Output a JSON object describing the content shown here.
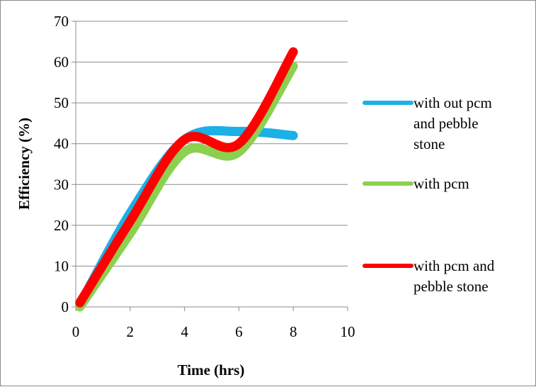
{
  "chart_data": {
    "type": "line",
    "xlabel": "Time (hrs)",
    "ylabel": "Efficiency (%)",
    "xlim": [
      0,
      10
    ],
    "ylim": [
      0,
      70
    ],
    "x_ticks": [
      0,
      2,
      4,
      6,
      8,
      10
    ],
    "y_ticks": [
      0,
      10,
      20,
      30,
      40,
      50,
      60,
      70
    ],
    "grid": "horizontal",
    "legend_position": "right",
    "series": [
      {
        "name": [
          "with out pcm",
          "and pebble",
          "stone"
        ],
        "color": "#1BB0E6",
        "x": [
          0,
          2,
          4,
          6,
          8
        ],
        "y": [
          0.5,
          23,
          41,
          43,
          42
        ]
      },
      {
        "name": [
          "with pcm"
        ],
        "color": "#8CD04F",
        "x": [
          0,
          2,
          4,
          6,
          8
        ],
        "y": [
          0,
          18,
          38,
          38,
          59
        ]
      },
      {
        "name": [
          "with pcm and",
          "pebble stone"
        ],
        "color": "#FF0000",
        "x": [
          0,
          2,
          4,
          6,
          8
        ],
        "y": [
          1,
          21,
          41,
          40,
          62.5
        ]
      }
    ]
  }
}
